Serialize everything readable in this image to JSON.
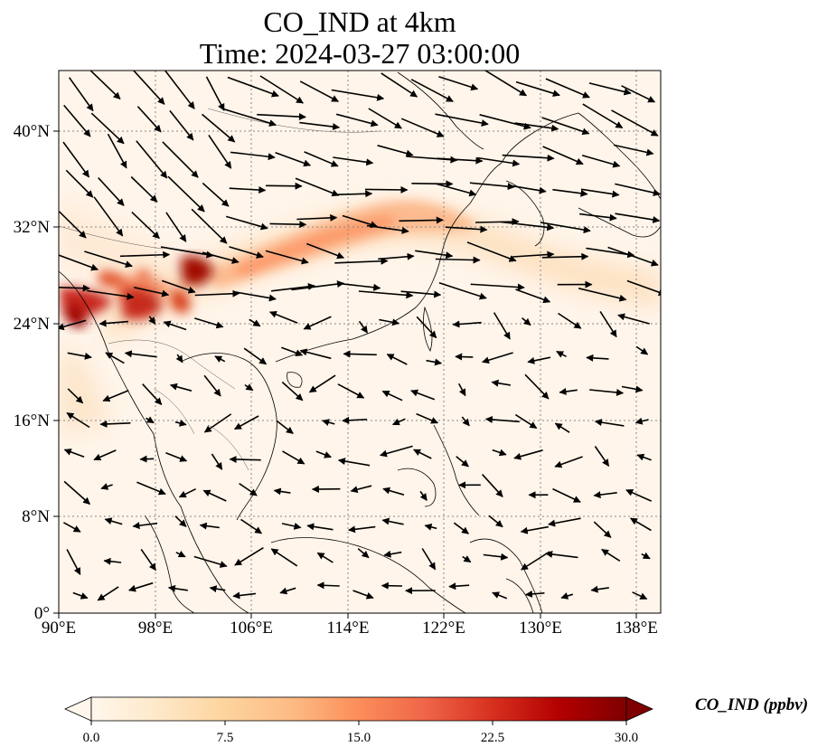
{
  "title": "CO_IND at 4km",
  "subtitle": "Time: 2024-03-27 03:00:00",
  "map": {
    "lon_range": [
      90,
      140
    ],
    "lat_range": [
      0,
      45
    ],
    "lon_ticks": [
      "90°E",
      "98°E",
      "106°E",
      "114°E",
      "122°E",
      "130°E",
      "138°E"
    ],
    "lat_ticks": [
      "0°",
      "8°N",
      "16°N",
      "24°N",
      "32°N",
      "40°N"
    ],
    "gridlines": true,
    "coastlines": true,
    "vectors": "wind arrows"
  },
  "colorbar": {
    "label": "CO_IND (ppbv)",
    "ticks": [
      "0.0",
      "7.5",
      "15.0",
      "22.5",
      "30.0"
    ],
    "range": [
      0,
      30
    ],
    "colormap": [
      "#fff7ec",
      "#fee8c8",
      "#fdd49e",
      "#fdbb84",
      "#fc8d59",
      "#ef6548",
      "#d7301f",
      "#b30000",
      "#7f0000"
    ],
    "extend": "both"
  },
  "colors": {
    "accent_dark": "#7f0000",
    "land_outline": "#000000",
    "grid": "#8a8a8a"
  }
}
